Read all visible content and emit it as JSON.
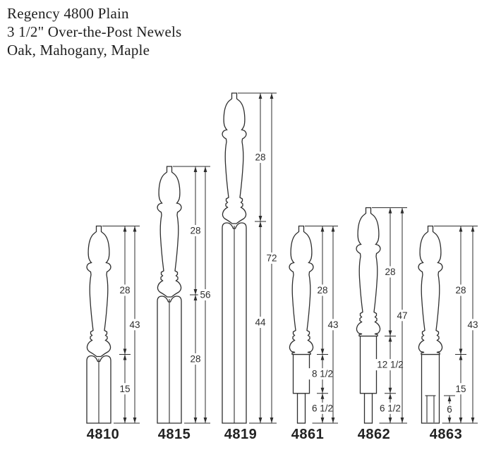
{
  "title": {
    "line1": "Regency 4800 Plain",
    "line2": "3 1/2\" Over-the-Post Newels",
    "line3": "Oak, Mahogany, Maple"
  },
  "diagram": {
    "unit": "inches",
    "posts": [
      {
        "id": "4810",
        "style": "arch-square",
        "overall": {
          "label": "43",
          "value": 43
        },
        "segments": [
          {
            "label": "28",
            "value": 28
          },
          {
            "label": "15",
            "value": 15
          }
        ]
      },
      {
        "id": "4815",
        "style": "arch-square",
        "overall": {
          "label": "56",
          "value": 56
        },
        "segments": [
          {
            "label": "28",
            "value": 28
          },
          {
            "label": "28",
            "value": 28
          }
        ]
      },
      {
        "id": "4819",
        "style": "arch-square",
        "overall": {
          "label": "72",
          "value": 72
        },
        "segments": [
          {
            "label": "28",
            "value": 28
          },
          {
            "label": "44",
            "value": 44
          }
        ]
      },
      {
        "id": "4861",
        "style": "block-pin",
        "overall": {
          "label": "43",
          "value": 43
        },
        "segments": [
          {
            "label": "28",
            "value": 28
          },
          {
            "label": "8 1/2",
            "value": 8.5
          },
          {
            "label": "6 1/2",
            "value": 6.5
          }
        ]
      },
      {
        "id": "4862",
        "style": "block-pin",
        "overall": {
          "label": "47",
          "value": 47
        },
        "segments": [
          {
            "label": "28",
            "value": 28
          },
          {
            "label": "12 1/2",
            "value": 12.5
          },
          {
            "label": "6 1/2",
            "value": 6.5
          }
        ]
      },
      {
        "id": "4863",
        "style": "notched-square",
        "overall": {
          "label": "43",
          "value": 43
        },
        "segments": [
          {
            "label": "28",
            "value": 28
          },
          {
            "label": "15",
            "value": 15
          }
        ],
        "notch": {
          "label": "6",
          "value": 6
        }
      }
    ]
  },
  "colors": {
    "ink": "#2e2e2e",
    "background": "#ffffff"
  }
}
